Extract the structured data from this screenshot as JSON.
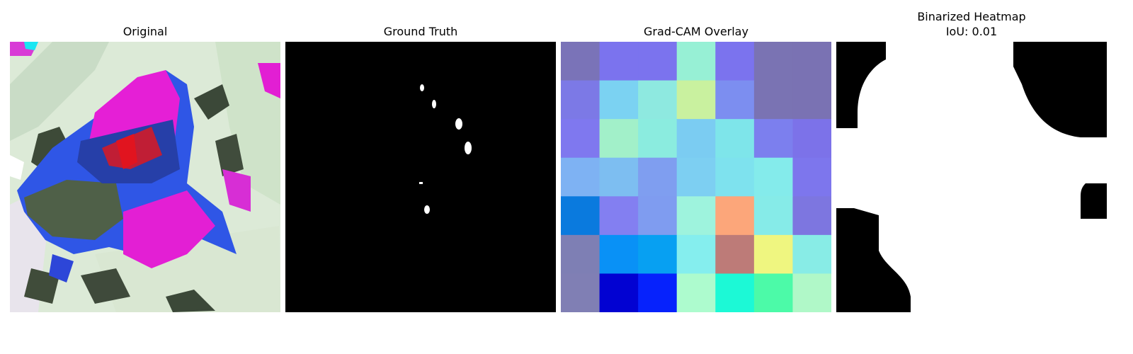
{
  "panels": [
    {
      "title": "Original"
    },
    {
      "title": "Ground Truth"
    },
    {
      "title": "Grad-CAM Overlay"
    },
    {
      "title": "Binarized Heatmap",
      "subtitle": "IoU: 0.01"
    }
  ],
  "gradcam_grid": [
    [
      "#7a73b8",
      "#7b73ee",
      "#7b73ee",
      "#97f0d5",
      "#7b73ee",
      "#7a73b3",
      "#7a72b3"
    ],
    [
      "#7c79e6",
      "#7bd2f2",
      "#8ee9e0",
      "#c9f19f",
      "#7c8ef0",
      "#7a73b3",
      "#7a72b3"
    ],
    [
      "#7f78ef",
      "#a2f0c9",
      "#8becdf",
      "#7bccf2",
      "#7ee5ea",
      "#7c7fee",
      "#7c72e9"
    ],
    [
      "#7eb2f3",
      "#7dbef1",
      "#7f9ef0",
      "#7dcff2",
      "#7ee2ee",
      "#84ebeb",
      "#7d76ed"
    ],
    [
      "#0a7ade",
      "#837ff1",
      "#7f9cf0",
      "#9ef3dd",
      "#fca67a",
      "#86ebe8",
      "#7d76e0"
    ],
    [
      "#7e7fb4",
      "#0991f6",
      "#07a0f2",
      "#85eeee",
      "#bd7b78",
      "#eff680",
      "#88ece6"
    ],
    [
      "#807fb4",
      "#0202d2",
      "#0622fc",
      "#adfbce",
      "#1cf9d6",
      "#4cfaa8",
      "#b0f8c8"
    ]
  ]
}
